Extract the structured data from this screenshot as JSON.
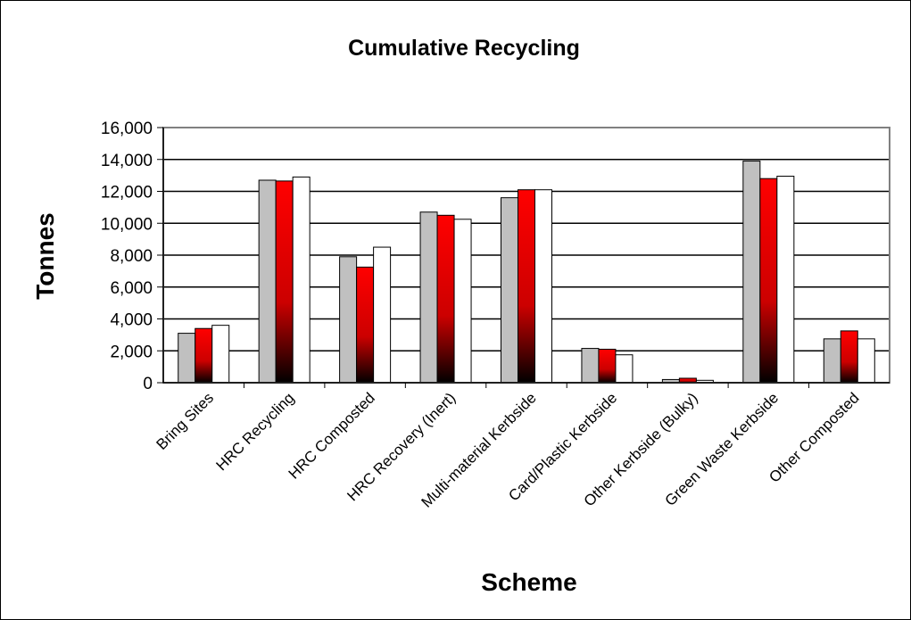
{
  "chart_data": {
    "type": "bar",
    "title": "Cumulative Recycling",
    "xlabel": "Scheme",
    "ylabel": "Tonnes",
    "ylim": [
      0,
      16000
    ],
    "yticks": [
      "0",
      "2,000",
      "4,000",
      "6,000",
      "8,000",
      "10,000",
      "12,000",
      "14,000",
      "16,000"
    ],
    "categories": [
      "Bring Sites",
      "HRC Recycling",
      "HRC Composted",
      "HRC Recovery (Inert)",
      "Multi-material Kerbside",
      "Card/Plastic Kerbside",
      "Other Kerbside (Bulky)",
      "Green Waste Kerbside",
      "Other Composted"
    ],
    "series": [
      {
        "values": [
          3100,
          12700,
          7900,
          10700,
          11600,
          2150,
          200,
          13900,
          2750
        ],
        "color": "#c0c0c0"
      },
      {
        "values": [
          3400,
          12650,
          7250,
          10500,
          12100,
          2100,
          280,
          12800,
          3250
        ],
        "color": "#ff0000"
      },
      {
        "values": [
          3600,
          12900,
          8500,
          10250,
          12100,
          1750,
          150,
          12950,
          2750
        ],
        "color": "#ffffff"
      }
    ],
    "grid": true,
    "legend": "none",
    "colors": {
      "plot_border": "#808080",
      "gridline": "#000000"
    }
  }
}
